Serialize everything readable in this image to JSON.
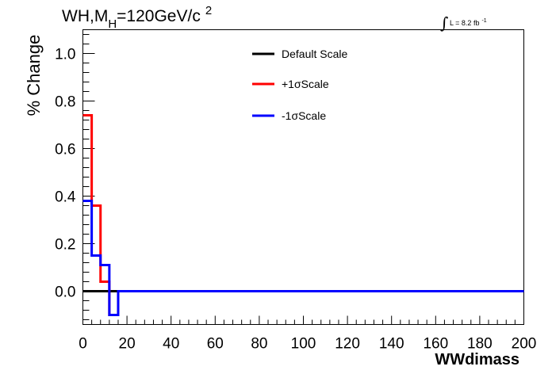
{
  "chart_data": {
    "type": "line",
    "title_main": "WH,M",
    "title_sub": "H",
    "title_rest": "=120GeV/c",
    "title_sup": "2",
    "lumi_integral": "∫",
    "lumi_label": "L = 8.2 fb",
    "lumi_sup": "-1",
    "xlabel": "WWdimass",
    "ylabel": "% Change",
    "xlim": [
      0,
      200
    ],
    "ylim": [
      -0.14,
      1.1
    ],
    "xticks": [
      0,
      20,
      40,
      60,
      80,
      100,
      120,
      140,
      160,
      180,
      200
    ],
    "yticks": [
      0.0,
      0.2,
      0.4,
      0.6,
      0.8,
      1.0
    ],
    "xtick_labels": [
      "0",
      "20",
      "40",
      "60",
      "80",
      "100",
      "120",
      "140",
      "160",
      "180",
      "200"
    ],
    "ytick_labels": [
      "0.0",
      "0.2",
      "0.4",
      "0.6",
      "0.8",
      "1.0"
    ],
    "bin_edges": [
      0,
      4,
      8,
      12,
      16,
      20,
      200
    ],
    "legend_position": "top-center",
    "series": [
      {
        "name": "Default Scale",
        "color": "#000000",
        "values": [
          0,
          0,
          0,
          0,
          0,
          0
        ]
      },
      {
        "name": "+1σScale",
        "color": "#ff0000",
        "values": [
          0.74,
          0.36,
          0.04,
          -0.1,
          0,
          0
        ]
      },
      {
        "name": "-1σScale",
        "color": "#0000ff",
        "values": [
          0.38,
          0.15,
          0.11,
          -0.1,
          0,
          0
        ]
      }
    ]
  }
}
